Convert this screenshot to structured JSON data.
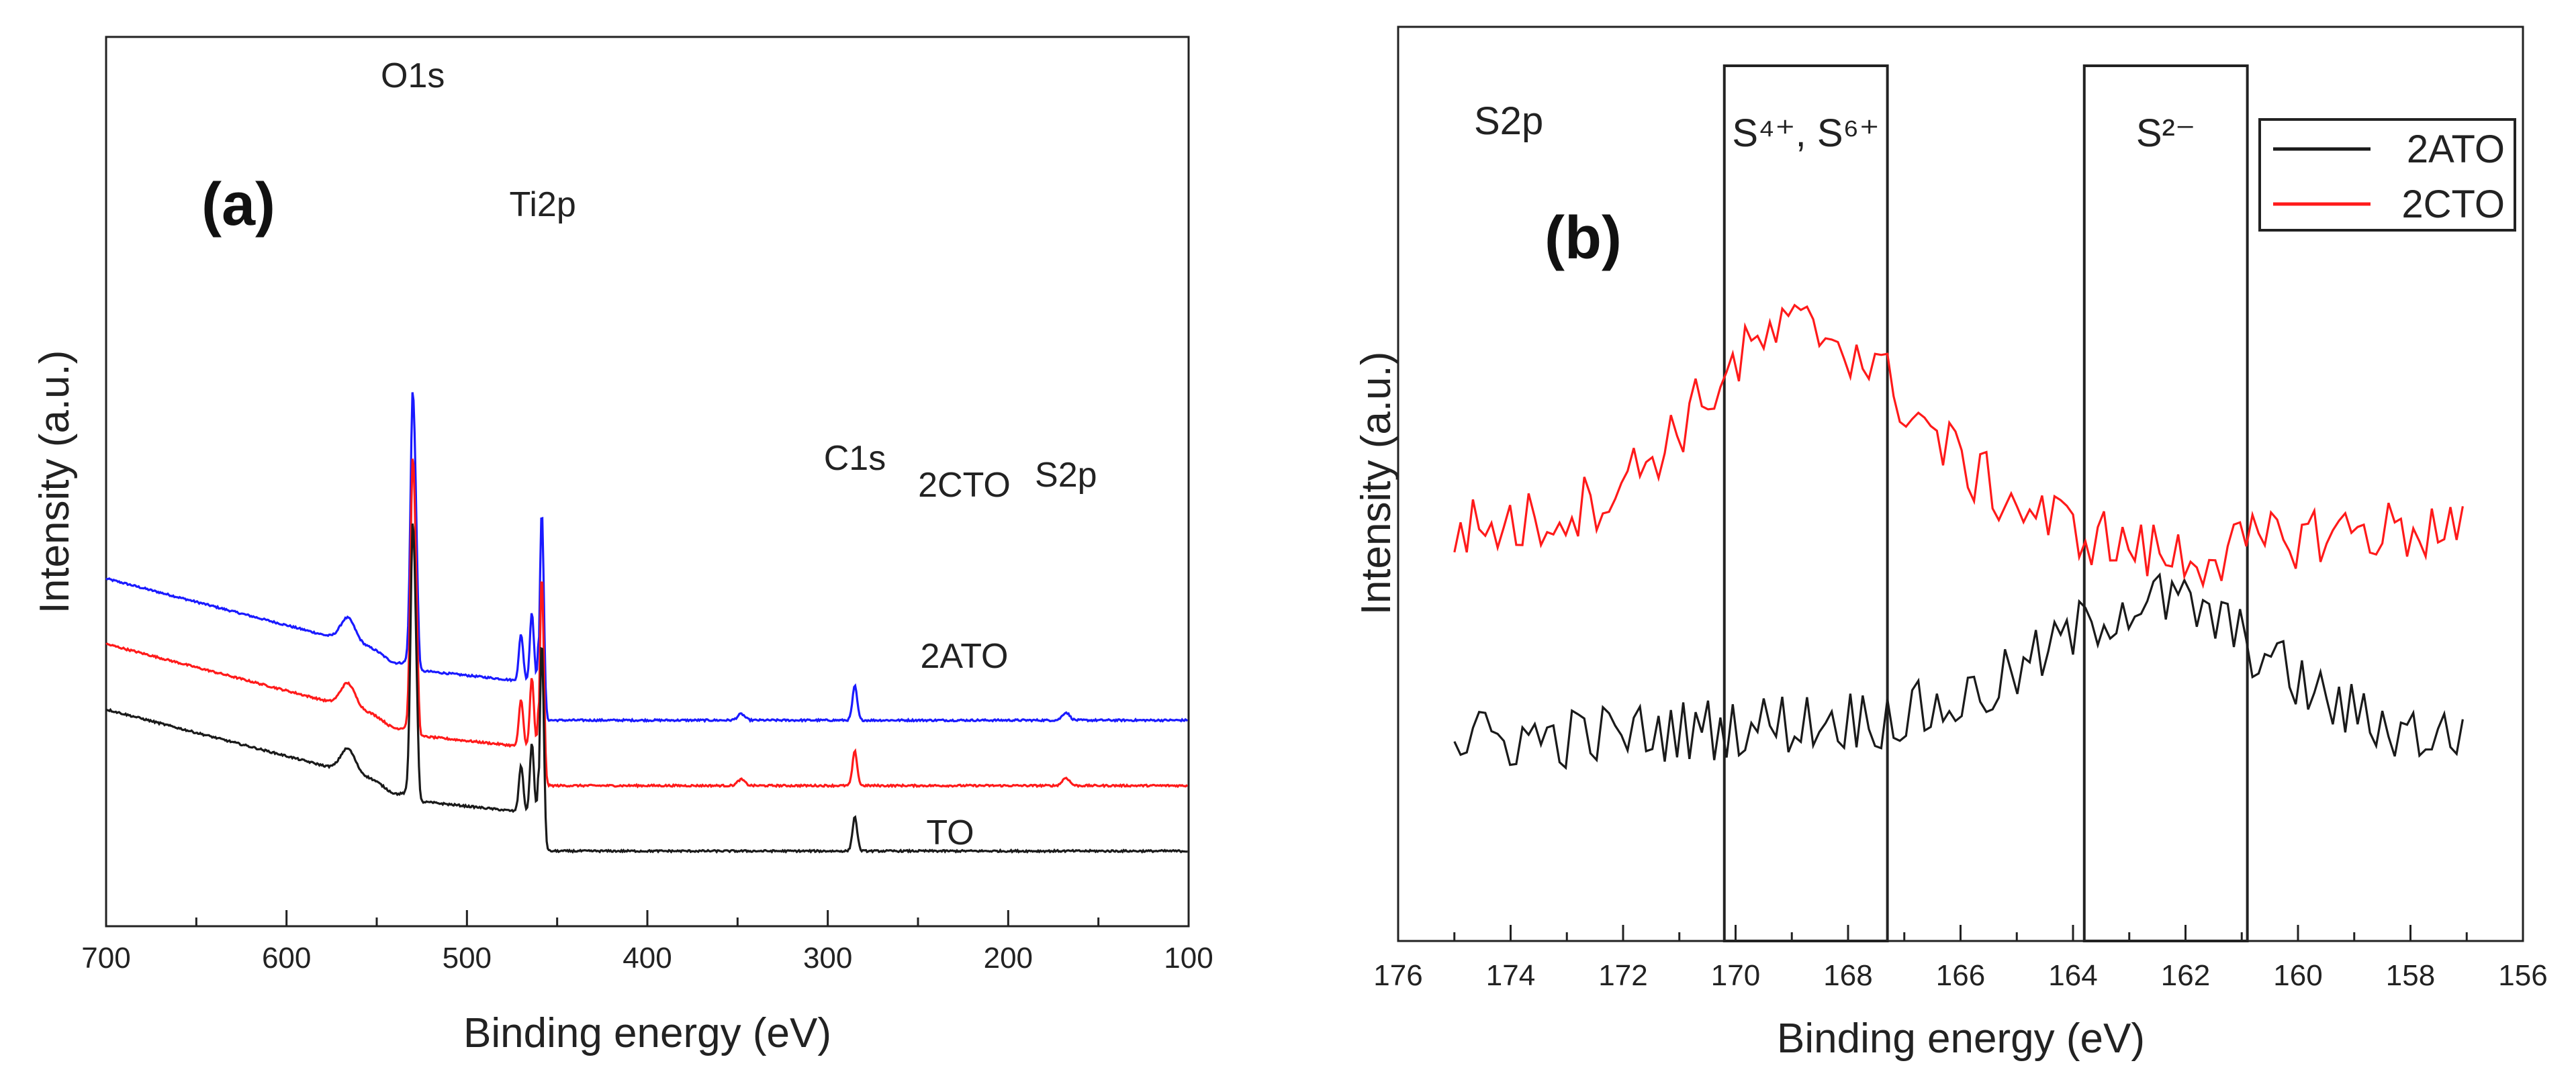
{
  "chart_data": [
    {
      "panel": "(a)",
      "type": "line",
      "xlabel": "Binding energy (eV)",
      "ylabel": "Intensity (a.u.)",
      "xlim": [
        700,
        100
      ],
      "x_ticks": [
        700,
        600,
        500,
        400,
        300,
        200,
        100
      ],
      "peak_labels": [
        {
          "text": "O1s",
          "x": 530
        },
        {
          "text": "Ti2p",
          "x": 458
        },
        {
          "text": "C1s",
          "x": 285
        },
        {
          "text": "S2p",
          "x": 168
        }
      ],
      "series": [
        {
          "name": "2CTO",
          "color": "#1a1aff",
          "offset": 2.0
        },
        {
          "name": "2ATO",
          "color": "#ff1a1a",
          "offset": 1.0
        },
        {
          "name": "TO",
          "color": "#1a1a1a",
          "offset": 0.0
        }
      ]
    },
    {
      "panel": "(b)",
      "type": "line",
      "title": "S2p",
      "xlabel": "Binding energy (eV)",
      "ylabel": "Intensity (a.u.)",
      "xlim": [
        176,
        156
      ],
      "x_ticks": [
        176,
        174,
        172,
        170,
        168,
        166,
        164,
        162,
        160,
        158,
        156
      ],
      "x_range_data": [
        175,
        157
      ],
      "regions": [
        {
          "label": "S⁴⁺, S⁶⁺",
          "x0": 170.2,
          "x1": 167.3
        },
        {
          "label": "S²⁻",
          "x0": 163.8,
          "x1": 160.9
        }
      ],
      "legend": {
        "position": "top-right",
        "entries": [
          "2ATO",
          "2CTO"
        ]
      },
      "series": [
        {
          "name": "2ATO",
          "color": "#1a1a1a",
          "baseline": 0.22,
          "peak_center": 162.5,
          "peak_height": 0.15
        },
        {
          "name": "2CTO",
          "color": "#ff1a1a",
          "baseline": 0.45,
          "peak_center": 168.8,
          "peak_height": 0.22
        }
      ]
    }
  ]
}
